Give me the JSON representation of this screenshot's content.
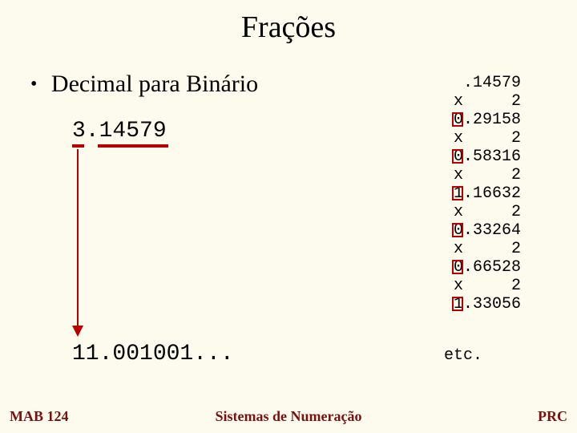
{
  "title": "Frações",
  "bullet": "Decimal para Binário",
  "input_number": "3.14579",
  "result_number": "11.001001...",
  "calc_lines": [
    {
      "text": " .14579",
      "box": false
    },
    {
      "text": "x     2",
      "box": false
    },
    {
      "text": "0.29158",
      "box": true
    },
    {
      "text": "x     2",
      "box": false
    },
    {
      "text": "0.58316",
      "box": true
    },
    {
      "text": "x     2",
      "box": false
    },
    {
      "text": "1.16632",
      "box": true
    },
    {
      "text": "x     2",
      "box": false
    },
    {
      "text": "0.33264",
      "box": true
    },
    {
      "text": "x     2",
      "box": false
    },
    {
      "text": "0.66528",
      "box": true
    },
    {
      "text": "x     2",
      "box": false
    },
    {
      "text": "1.33056",
      "box": true
    }
  ],
  "etc_label": "etc.",
  "footer": {
    "left": "MAB 124",
    "center": "Sistemas de Numeração",
    "right": "PRC"
  },
  "colors": {
    "background": "#fdfbee",
    "accent": "#b80000",
    "footer_text": "#7a1010"
  }
}
